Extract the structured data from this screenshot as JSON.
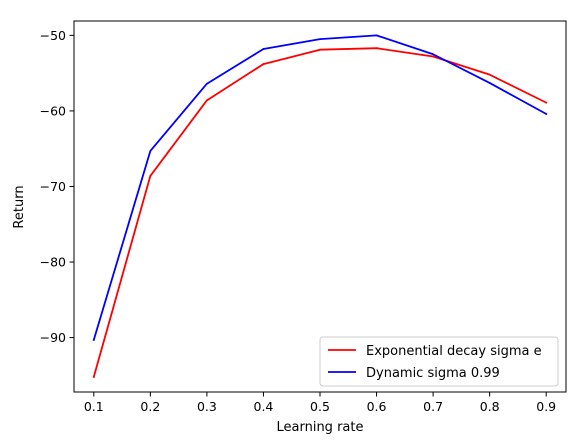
{
  "chart_data": {
    "type": "line",
    "title": "",
    "xlabel": "Learning rate",
    "ylabel": "Return",
    "x": [
      0.1,
      0.2,
      0.3,
      0.4,
      0.5,
      0.6,
      0.7,
      0.8,
      0.9
    ],
    "xlim": [
      0.065,
      0.935
    ],
    "ylim": [
      -97.2,
      -48.1
    ],
    "xticks": [
      "0.1",
      "0.2",
      "0.3",
      "0.4",
      "0.5",
      "0.6",
      "0.7",
      "0.8",
      "0.9"
    ],
    "yticks": [
      "−90",
      "−80",
      "−70",
      "−60",
      "−50"
    ],
    "ytick_values": [
      -90,
      -80,
      -70,
      -60,
      -50
    ],
    "grid": false,
    "legend_position": "lower-right",
    "series": [
      {
        "name": "Exponential decay sigma e",
        "color": "#ff0000",
        "values": [
          -95.2,
          -68.6,
          -58.6,
          -53.8,
          -51.9,
          -51.7,
          -52.8,
          -55.2,
          -58.9
        ]
      },
      {
        "name": "Dynamic sigma 0.99",
        "color": "#0000ff",
        "values": [
          -90.3,
          -65.3,
          -56.4,
          -51.8,
          -50.5,
          -50.0,
          -52.5,
          -56.3,
          -60.4
        ]
      }
    ]
  }
}
